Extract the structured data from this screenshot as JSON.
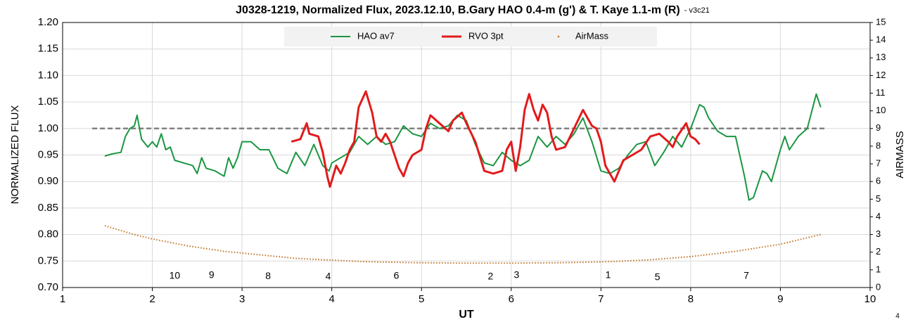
{
  "chart_data": {
    "type": "line",
    "title": "J0328-1219, Normalized Flux, 2023.12.10, B.Gary HAO 0.4-m (g') & T. Kaye 1.1-m (R)",
    "version": "- v3c21",
    "x_label": "UT",
    "y_label": "NORMALIZED FLUX",
    "y2_label": "AIRMASS",
    "corner_note": "4",
    "xlim": [
      1,
      10
    ],
    "xticks": [
      1,
      2,
      3,
      4,
      5,
      6,
      7,
      8,
      9,
      10
    ],
    "ylim": [
      0.7,
      1.2
    ],
    "yticks": [
      {
        "value": 0.7,
        "label": "0.70"
      },
      {
        "value": 0.75,
        "label": "0.75"
      },
      {
        "value": 0.8,
        "label": "0.80"
      },
      {
        "value": 0.85,
        "label": "0.85"
      },
      {
        "value": 0.9,
        "label": "0.90"
      },
      {
        "value": 0.95,
        "label": "0.95"
      },
      {
        "value": 1.0,
        "label": "1.00"
      },
      {
        "value": 1.05,
        "label": "1.05"
      },
      {
        "value": 1.1,
        "label": "1.10"
      },
      {
        "value": 1.15,
        "label": "1.15"
      },
      {
        "value": 1.2,
        "label": "1.20"
      }
    ],
    "y2lim": [
      0,
      15
    ],
    "y2ticks": [
      0,
      1,
      2,
      3,
      4,
      5,
      6,
      7,
      8,
      9,
      10,
      11,
      12,
      13,
      14,
      15
    ],
    "grid": true,
    "legend": "top",
    "reference_line": {
      "value": 1.0,
      "xlim": [
        1.33,
        9.52
      ],
      "color": "#808080"
    },
    "series": [
      {
        "name": "HAO av7",
        "color": "#1a9641",
        "style": "line",
        "x": [
          1.47,
          1.55,
          1.65,
          1.7,
          1.75,
          1.8,
          1.83,
          1.88,
          1.95,
          2.0,
          2.05,
          2.1,
          2.15,
          2.2,
          2.25,
          2.35,
          2.45,
          2.5,
          2.55,
          2.6,
          2.7,
          2.8,
          2.85,
          2.9,
          2.95,
          3.0,
          3.1,
          3.2,
          3.3,
          3.4,
          3.5,
          3.6,
          3.7,
          3.8,
          3.9,
          3.97,
          4.0,
          4.1,
          4.2,
          4.3,
          4.4,
          4.5,
          4.6,
          4.7,
          4.8,
          4.9,
          5.0,
          5.1,
          5.2,
          5.3,
          5.4,
          5.5,
          5.6,
          5.7,
          5.8,
          5.9,
          6.0,
          6.1,
          6.2,
          6.3,
          6.4,
          6.5,
          6.6,
          6.7,
          6.8,
          6.9,
          7.0,
          7.1,
          7.2,
          7.3,
          7.4,
          7.5,
          7.6,
          7.7,
          7.8,
          7.9,
          8.0,
          8.1,
          8.15,
          8.2,
          8.3,
          8.4,
          8.5,
          8.6,
          8.65,
          8.7,
          8.8,
          8.85,
          8.9,
          9.0,
          9.05,
          9.1,
          9.2,
          9.3,
          9.4,
          9.45
        ],
        "values": [
          0.948,
          0.952,
          0.955,
          0.985,
          1.0,
          1.005,
          1.025,
          0.98,
          0.965,
          0.975,
          0.965,
          0.99,
          0.96,
          0.965,
          0.94,
          0.935,
          0.93,
          0.915,
          0.945,
          0.925,
          0.92,
          0.91,
          0.945,
          0.925,
          0.945,
          0.975,
          0.975,
          0.96,
          0.96,
          0.925,
          0.915,
          0.955,
          0.93,
          0.97,
          0.93,
          0.92,
          0.935,
          0.945,
          0.955,
          0.985,
          0.97,
          0.985,
          0.97,
          0.975,
          1.005,
          0.99,
          0.985,
          1.01,
          1.0,
          1.005,
          1.025,
          1.015,
          0.97,
          0.935,
          0.93,
          0.955,
          0.94,
          0.93,
          0.94,
          0.985,
          0.965,
          0.985,
          0.97,
          0.99,
          1.02,
          0.975,
          0.92,
          0.915,
          0.925,
          0.95,
          0.97,
          0.975,
          0.93,
          0.955,
          0.985,
          0.965,
          1.0,
          1.045,
          1.04,
          1.02,
          0.995,
          0.985,
          0.985,
          0.91,
          0.865,
          0.87,
          0.92,
          0.915,
          0.9,
          0.96,
          0.985,
          0.96,
          0.985,
          1.0,
          1.065,
          1.04
        ]
      },
      {
        "name": "RVO 3pt",
        "color": "#e31a1c",
        "style": "line",
        "x": [
          3.55,
          3.65,
          3.72,
          3.75,
          3.85,
          3.9,
          3.95,
          3.98,
          4.05,
          4.1,
          4.15,
          4.2,
          4.25,
          4.3,
          4.38,
          4.45,
          4.5,
          4.55,
          4.6,
          4.65,
          4.75,
          4.8,
          4.85,
          4.9,
          5.0,
          5.05,
          5.1,
          5.2,
          5.3,
          5.35,
          5.45,
          5.5,
          5.6,
          5.7,
          5.8,
          5.9,
          5.95,
          6.0,
          6.05,
          6.1,
          6.15,
          6.2,
          6.25,
          6.3,
          6.35,
          6.4,
          6.45,
          6.5,
          6.6,
          6.7,
          6.8,
          6.9,
          6.95,
          7.0,
          7.05,
          7.15,
          7.25,
          7.35,
          7.45,
          7.55,
          7.65,
          7.75,
          7.8,
          7.85,
          7.95,
          8.0,
          8.05,
          8.1
        ],
        "values": [
          0.975,
          0.98,
          1.01,
          0.99,
          0.985,
          0.955,
          0.91,
          0.89,
          0.93,
          0.915,
          0.935,
          0.96,
          0.975,
          1.04,
          1.07,
          1.03,
          0.985,
          0.975,
          0.99,
          0.975,
          0.925,
          0.91,
          0.935,
          0.95,
          0.96,
          1.0,
          1.025,
          1.01,
          0.995,
          1.015,
          1.03,
          1.01,
          0.975,
          0.92,
          0.915,
          0.92,
          0.96,
          0.975,
          0.92,
          0.965,
          1.035,
          1.065,
          1.035,
          1.015,
          1.045,
          1.03,
          0.985,
          0.96,
          0.965,
          1.0,
          1.035,
          1.005,
          1.0,
          0.975,
          0.93,
          0.9,
          0.94,
          0.95,
          0.96,
          0.985,
          0.99,
          0.975,
          0.965,
          0.985,
          1.01,
          0.985,
          0.98,
          0.97
        ]
      },
      {
        "name": "AirMass",
        "color": "#c07020",
        "style": "dots",
        "axis": "y2",
        "x": [
          1.47,
          1.6,
          1.8,
          2.0,
          2.2,
          2.4,
          2.6,
          2.8,
          3.0,
          3.2,
          3.4,
          3.6,
          3.8,
          4.0,
          4.2,
          4.5,
          5.0,
          5.5,
          6.0,
          6.5,
          7.0,
          7.5,
          8.0,
          8.5,
          9.0,
          9.45
        ],
        "values": [
          3.5,
          3.3,
          3.0,
          2.75,
          2.55,
          2.35,
          2.2,
          2.05,
          1.95,
          1.85,
          1.75,
          1.65,
          1.6,
          1.55,
          1.5,
          1.45,
          1.4,
          1.38,
          1.38,
          1.4,
          1.45,
          1.55,
          1.75,
          2.05,
          2.45,
          3.0
        ]
      }
    ],
    "annotations": [
      {
        "text": "10",
        "x": 2.25,
        "y2": 0.64
      },
      {
        "text": "9",
        "x": 2.66,
        "y2": 0.68
      },
      {
        "text": "8",
        "x": 3.29,
        "y2": 0.62
      },
      {
        "text": "4",
        "x": 3.96,
        "y2": 0.6
      },
      {
        "text": "6",
        "x": 4.72,
        "y2": 0.64
      },
      {
        "text": "2",
        "x": 5.77,
        "y2": 0.6
      },
      {
        "text": "3",
        "x": 6.06,
        "y2": 0.68
      },
      {
        "text": "1",
        "x": 7.08,
        "y2": 0.68
      },
      {
        "text": "5",
        "x": 7.63,
        "y2": 0.56
      },
      {
        "text": "7",
        "x": 8.62,
        "y2": 0.64
      }
    ]
  }
}
